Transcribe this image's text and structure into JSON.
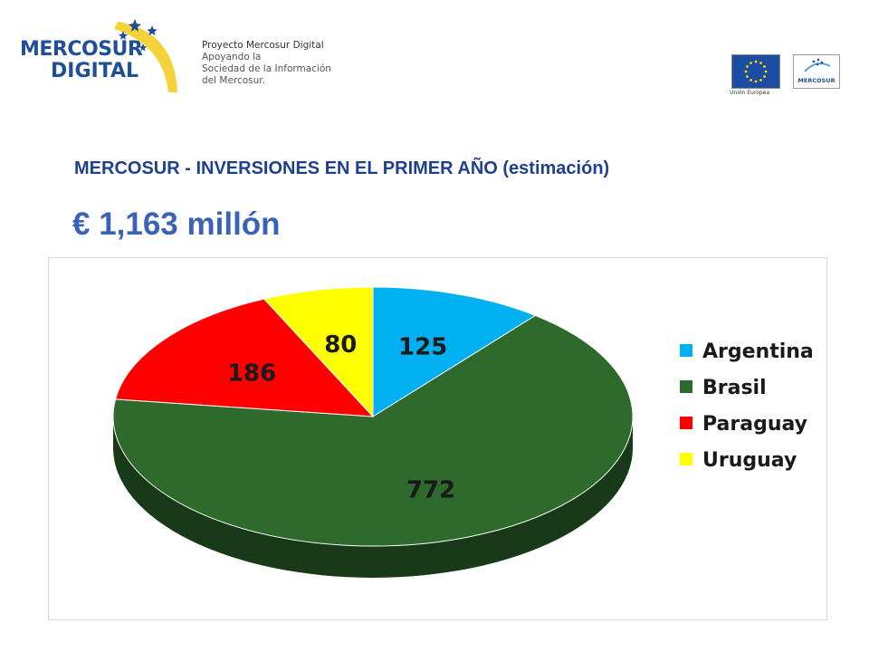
{
  "header": {
    "logo_line1": "MERCOSUR",
    "logo_line2": "DIGITAL",
    "project_title": "Proyecto Mercosur Digital",
    "project_line2": "Apoyando la",
    "project_line3": "Sociedad de la Información",
    "project_line4": "del Mercosur.",
    "eu_caption": "Unión Europea",
    "mercosur_badge": "MERCOSUR"
  },
  "title": "MERCOSUR - INVERSIONES EN EL PRIMER AÑO (estimación)",
  "amount": "€ 1,163 millón",
  "chart_data": {
    "type": "pie",
    "title": "",
    "categories": [
      "Argentina",
      "Brasil",
      "Paraguay",
      "Uruguay"
    ],
    "values": [
      125,
      772,
      186,
      80
    ],
    "colors": [
      "#00b0f0",
      "#2d6a2b",
      "#ff0000",
      "#ffff00"
    ],
    "legend": "right",
    "data_labels": true
  }
}
